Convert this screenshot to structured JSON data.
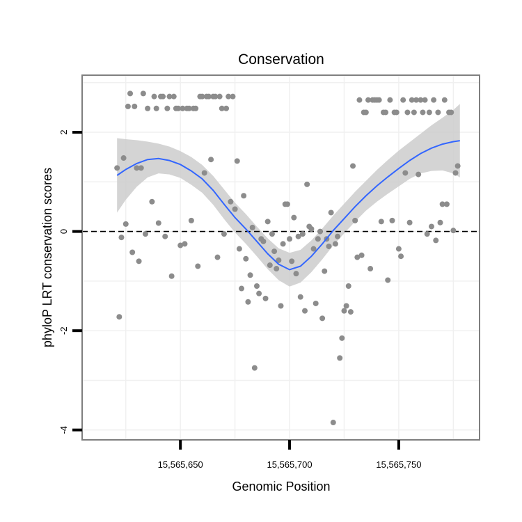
{
  "chart_data": {
    "type": "scatter",
    "title": "Conservation",
    "xlabel": "Genomic Position",
    "ylabel": "phyloP LRT conservation scores",
    "xlim": [
      15565605,
      15565787
    ],
    "ylim": [
      -4.2,
      3.15
    ],
    "x_ticks": [
      {
        "value": 15565650,
        "label": "15,565,650"
      },
      {
        "value": 15565700,
        "label": "15,565,700"
      },
      {
        "value": 15565750,
        "label": "15,565,750"
      }
    ],
    "y_ticks": [
      {
        "value": -4,
        "label": "-4"
      },
      {
        "value": -2,
        "label": "-2"
      },
      {
        "value": 0,
        "label": "0"
      },
      {
        "value": 2,
        "label": "2"
      }
    ],
    "reference_line": {
      "y": 0,
      "style": "dashed"
    },
    "colors": {
      "points": "#8c8c8c",
      "smooth": "#3366ff",
      "band": "#cccccc",
      "grid": "#f0f0f0",
      "frame": "#7f7f7f"
    },
    "points": [
      [
        15565621,
        1.28
      ],
      [
        15565622,
        -1.72
      ],
      [
        15565623,
        -0.12
      ],
      [
        15565624,
        1.48
      ],
      [
        15565625,
        0.15
      ],
      [
        15565626,
        2.52
      ],
      [
        15565627,
        2.78
      ],
      [
        15565628,
        -0.42
      ],
      [
        15565629,
        2.52
      ],
      [
        15565630,
        1.28
      ],
      [
        15565631,
        -0.6
      ],
      [
        15565632,
        1.28
      ],
      [
        15565633,
        2.78
      ],
      [
        15565634,
        -0.05
      ],
      [
        15565635,
        2.48
      ],
      [
        15565637,
        0.6
      ],
      [
        15565638,
        2.72
      ],
      [
        15565639,
        2.48
      ],
      [
        15565640,
        0.17
      ],
      [
        15565641,
        2.72
      ],
      [
        15565642,
        2.72
      ],
      [
        15565643,
        -0.1
      ],
      [
        15565644,
        2.48
      ],
      [
        15565645,
        2.72
      ],
      [
        15565646,
        -0.9
      ],
      [
        15565647,
        2.72
      ],
      [
        15565648,
        2.48
      ],
      [
        15565649,
        2.48
      ],
      [
        15565650,
        -0.28
      ],
      [
        15565651,
        2.48
      ],
      [
        15565652,
        -0.25
      ],
      [
        15565653,
        2.48
      ],
      [
        15565654,
        2.48
      ],
      [
        15565655,
        0.22
      ],
      [
        15565656,
        2.48
      ],
      [
        15565657,
        2.48
      ],
      [
        15565658,
        -0.7
      ],
      [
        15565659,
        2.72
      ],
      [
        15565660,
        2.72
      ],
      [
        15565661,
        1.18
      ],
      [
        15565662,
        2.72
      ],
      [
        15565663,
        2.72
      ],
      [
        15565664,
        1.45
      ],
      [
        15565665,
        2.72
      ],
      [
        15565666,
        2.72
      ],
      [
        15565667,
        -0.52
      ],
      [
        15565668,
        2.72
      ],
      [
        15565669,
        2.48
      ],
      [
        15565670,
        -0.05
      ],
      [
        15565671,
        2.48
      ],
      [
        15565672,
        2.72
      ],
      [
        15565673,
        0.6
      ],
      [
        15565674,
        2.72
      ],
      [
        15565675,
        0.45
      ],
      [
        15565676,
        1.42
      ],
      [
        15565677,
        -0.35
      ],
      [
        15565678,
        -1.15
      ],
      [
        15565679,
        0.72
      ],
      [
        15565680,
        -0.55
      ],
      [
        15565681,
        -1.42
      ],
      [
        15565682,
        -0.88
      ],
      [
        15565683,
        0.08
      ],
      [
        15565684,
        -2.75
      ],
      [
        15565685,
        -1.1
      ],
      [
        15565686,
        -1.25
      ],
      [
        15565687,
        -0.15
      ],
      [
        15565688,
        -0.2
      ],
      [
        15565689,
        -1.35
      ],
      [
        15565690,
        0.2
      ],
      [
        15565691,
        -0.68
      ],
      [
        15565692,
        -0.05
      ],
      [
        15565693,
        -0.4
      ],
      [
        15565694,
        -0.75
      ],
      [
        15565695,
        -0.58
      ],
      [
        15565696,
        -1.5
      ],
      [
        15565697,
        -0.25
      ],
      [
        15565698,
        0.55
      ],
      [
        15565699,
        0.55
      ],
      [
        15565700,
        -0.15
      ],
      [
        15565701,
        -0.6
      ],
      [
        15565702,
        0.28
      ],
      [
        15565703,
        -0.85
      ],
      [
        15565704,
        -0.1
      ],
      [
        15565705,
        -1.32
      ],
      [
        15565706,
        -0.05
      ],
      [
        15565707,
        -1.6
      ],
      [
        15565708,
        0.95
      ],
      [
        15565709,
        0.1
      ],
      [
        15565710,
        0.05
      ],
      [
        15565711,
        -0.35
      ],
      [
        15565712,
        -1.45
      ],
      [
        15565713,
        -0.15
      ],
      [
        15565714,
        0
      ],
      [
        15565715,
        -1.75
      ],
      [
        15565716,
        -0.8
      ],
      [
        15565717,
        -0.15
      ],
      [
        15565718,
        -0.3
      ],
      [
        15565719,
        0.38
      ],
      [
        15565720,
        -3.85
      ],
      [
        15565721,
        -0.25
      ],
      [
        15565722,
        -0.1
      ],
      [
        15565723,
        -2.55
      ],
      [
        15565724,
        -2.15
      ],
      [
        15565725,
        -1.6
      ],
      [
        15565726,
        -1.5
      ],
      [
        15565727,
        -1.1
      ],
      [
        15565728,
        -1.62
      ],
      [
        15565729,
        1.32
      ],
      [
        15565730,
        0.22
      ],
      [
        15565731,
        -0.52
      ],
      [
        15565732,
        2.65
      ],
      [
        15565733,
        -0.48
      ],
      [
        15565734,
        2.4
      ],
      [
        15565735,
        2.4
      ],
      [
        15565736,
        2.65
      ],
      [
        15565737,
        -0.75
      ],
      [
        15565738,
        2.65
      ],
      [
        15565739,
        2.65
      ],
      [
        15565740,
        2.65
      ],
      [
        15565741,
        2.65
      ],
      [
        15565742,
        0.2
      ],
      [
        15565743,
        2.4
      ],
      [
        15565744,
        2.4
      ],
      [
        15565745,
        -0.98
      ],
      [
        15565746,
        2.65
      ],
      [
        15565747,
        0.22
      ],
      [
        15565748,
        2.4
      ],
      [
        15565749,
        2.4
      ],
      [
        15565750,
        -0.35
      ],
      [
        15565751,
        -0.5
      ],
      [
        15565752,
        2.65
      ],
      [
        15565753,
        1.18
      ],
      [
        15565754,
        2.4
      ],
      [
        15565755,
        0.18
      ],
      [
        15565756,
        2.65
      ],
      [
        15565757,
        2.4
      ],
      [
        15565758,
        2.65
      ],
      [
        15565759,
        1.15
      ],
      [
        15565760,
        2.65
      ],
      [
        15565761,
        2.4
      ],
      [
        15565762,
        2.65
      ],
      [
        15565763,
        -0.05
      ],
      [
        15565764,
        2.4
      ],
      [
        15565765,
        0.1
      ],
      [
        15565766,
        2.65
      ],
      [
        15565767,
        -0.18
      ],
      [
        15565768,
        2.4
      ],
      [
        15565769,
        0.18
      ],
      [
        15565770,
        0.55
      ],
      [
        15565771,
        2.65
      ],
      [
        15565772,
        0.55
      ],
      [
        15565773,
        2.4
      ],
      [
        15565774,
        2.4
      ],
      [
        15565775,
        0.02
      ],
      [
        15565776,
        1.18
      ],
      [
        15565777,
        1.32
      ]
    ],
    "smooth": [
      [
        15565621,
        1.13
      ],
      [
        15565625,
        1.25
      ],
      [
        15565630,
        1.37
      ],
      [
        15565635,
        1.45
      ],
      [
        15565640,
        1.47
      ],
      [
        15565645,
        1.43
      ],
      [
        15565650,
        1.35
      ],
      [
        15565655,
        1.22
      ],
      [
        15565660,
        1.06
      ],
      [
        15565665,
        0.83
      ],
      [
        15565670,
        0.55
      ],
      [
        15565675,
        0.28
      ],
      [
        15565680,
        0.05
      ],
      [
        15565685,
        -0.2
      ],
      [
        15565690,
        -0.45
      ],
      [
        15565695,
        -0.66
      ],
      [
        15565700,
        -0.77
      ],
      [
        15565705,
        -0.7
      ],
      [
        15565710,
        -0.5
      ],
      [
        15565715,
        -0.25
      ],
      [
        15565720,
        0.02
      ],
      [
        15565725,
        0.26
      ],
      [
        15565730,
        0.5
      ],
      [
        15565735,
        0.72
      ],
      [
        15565740,
        0.92
      ],
      [
        15565745,
        1.1
      ],
      [
        15565750,
        1.27
      ],
      [
        15565755,
        1.43
      ],
      [
        15565760,
        1.57
      ],
      [
        15565765,
        1.68
      ],
      [
        15565770,
        1.76
      ],
      [
        15565775,
        1.81
      ],
      [
        15565778,
        1.83
      ]
    ],
    "band_upper": [
      [
        15565621,
        1.88
      ],
      [
        15565625,
        1.86
      ],
      [
        15565630,
        1.84
      ],
      [
        15565635,
        1.81
      ],
      [
        15565640,
        1.77
      ],
      [
        15565645,
        1.71
      ],
      [
        15565650,
        1.62
      ],
      [
        15565655,
        1.5
      ],
      [
        15565660,
        1.34
      ],
      [
        15565665,
        1.12
      ],
      [
        15565670,
        0.85
      ],
      [
        15565675,
        0.58
      ],
      [
        15565680,
        0.35
      ],
      [
        15565685,
        0.1
      ],
      [
        15565690,
        -0.14
      ],
      [
        15565695,
        -0.34
      ],
      [
        15565700,
        -0.43
      ],
      [
        15565705,
        -0.37
      ],
      [
        15565710,
        -0.18
      ],
      [
        15565715,
        0.06
      ],
      [
        15565720,
        0.32
      ],
      [
        15565725,
        0.56
      ],
      [
        15565730,
        0.8
      ],
      [
        15565735,
        1.02
      ],
      [
        15565740,
        1.24
      ],
      [
        15565745,
        1.44
      ],
      [
        15565750,
        1.63
      ],
      [
        15565755,
        1.8
      ],
      [
        15565760,
        1.97
      ],
      [
        15565765,
        2.14
      ],
      [
        15565770,
        2.29
      ],
      [
        15565775,
        2.45
      ],
      [
        15565778,
        2.57
      ]
    ],
    "band_lower": [
      [
        15565621,
        0.38
      ],
      [
        15565625,
        0.64
      ],
      [
        15565630,
        0.9
      ],
      [
        15565635,
        1.09
      ],
      [
        15565640,
        1.17
      ],
      [
        15565645,
        1.15
      ],
      [
        15565650,
        1.08
      ],
      [
        15565655,
        0.94
      ],
      [
        15565660,
        0.78
      ],
      [
        15565665,
        0.54
      ],
      [
        15565670,
        0.25
      ],
      [
        15565675,
        -0.02
      ],
      [
        15565680,
        -0.25
      ],
      [
        15565685,
        -0.5
      ],
      [
        15565690,
        -0.76
      ],
      [
        15565695,
        -0.98
      ],
      [
        15565700,
        -1.11
      ],
      [
        15565705,
        -1.03
      ],
      [
        15565710,
        -0.82
      ],
      [
        15565715,
        -0.56
      ],
      [
        15565720,
        -0.28
      ],
      [
        15565725,
        -0.04
      ],
      [
        15565730,
        0.2
      ],
      [
        15565735,
        0.42
      ],
      [
        15565740,
        0.6
      ],
      [
        15565745,
        0.76
      ],
      [
        15565750,
        0.91
      ],
      [
        15565755,
        1.06
      ],
      [
        15565760,
        1.17
      ],
      [
        15565765,
        1.22
      ],
      [
        15565770,
        1.23
      ],
      [
        15565775,
        1.17
      ],
      [
        15565778,
        1.09
      ]
    ]
  }
}
